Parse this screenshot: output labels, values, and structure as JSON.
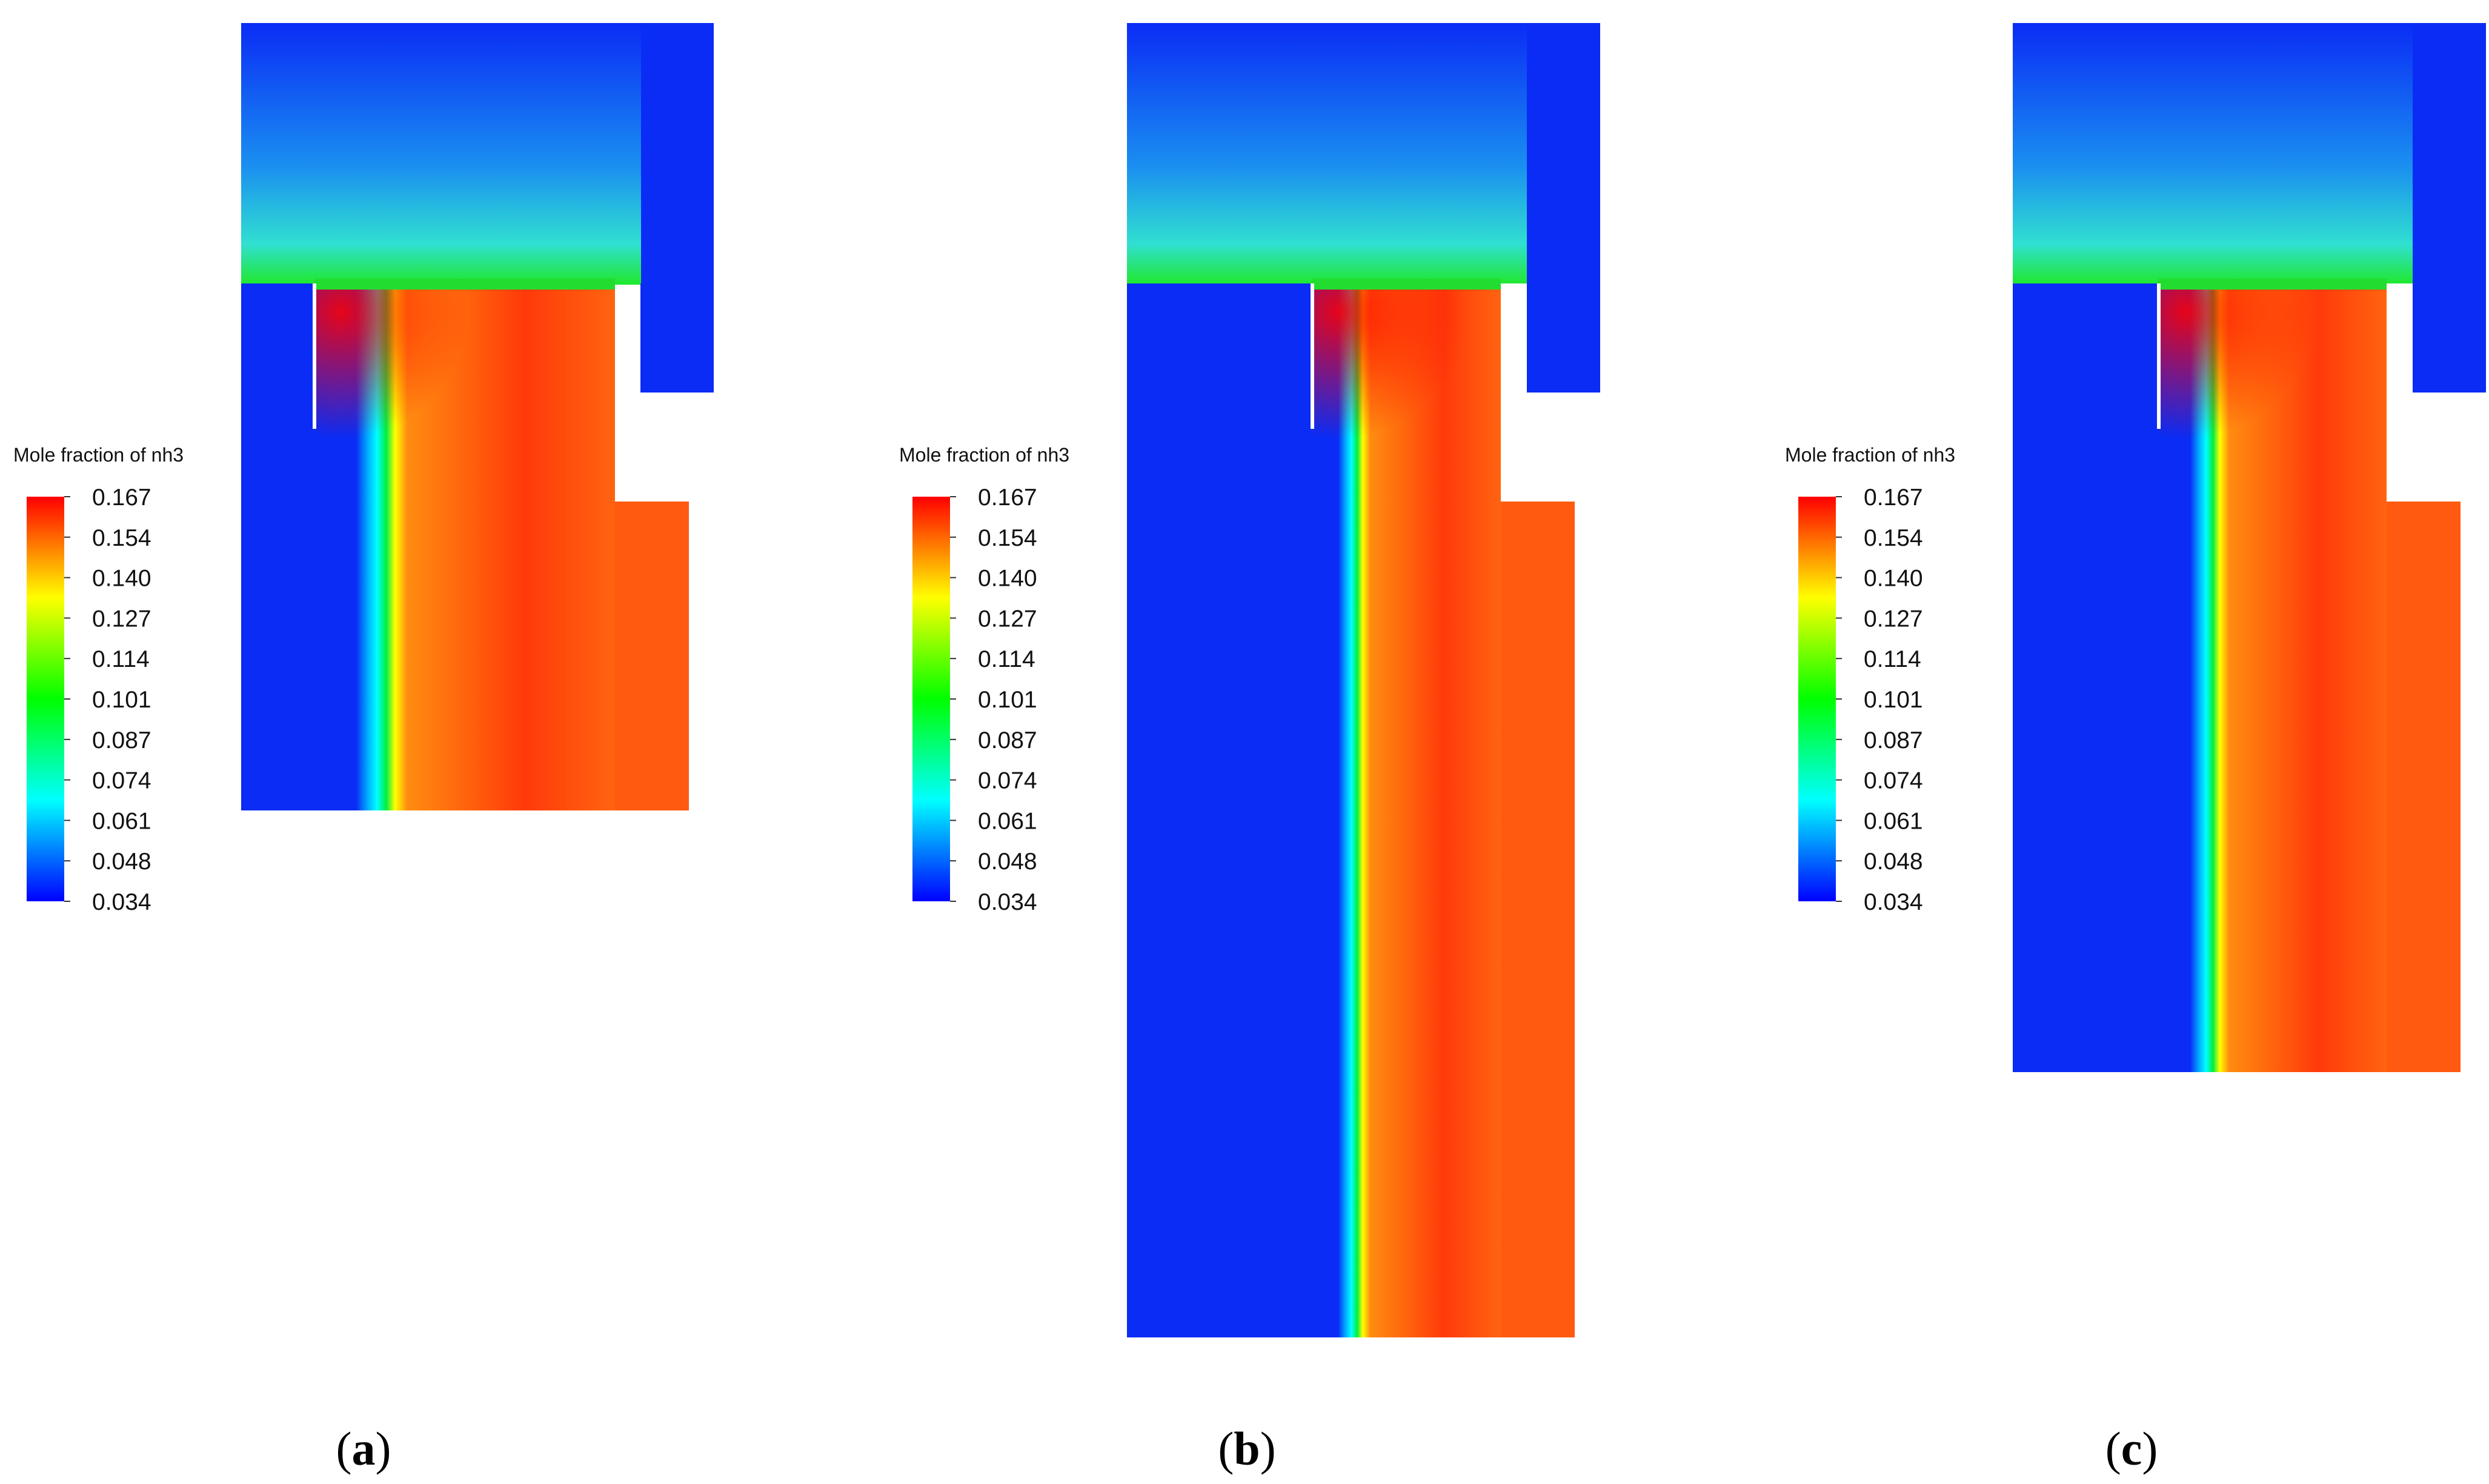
{
  "colorbar": {
    "title": "Mole fraction of nh3",
    "ticks": [
      "0.167",
      "0.154",
      "0.140",
      "0.127",
      "0.114",
      "0.101",
      "0.087",
      "0.074",
      "0.061",
      "0.048",
      "0.034"
    ],
    "range": [
      0.034,
      0.167
    ],
    "colormap": [
      "#0000ff",
      "#00ffff",
      "#00ff00",
      "#ffff00",
      "#ff0000"
    ]
  },
  "panels": [
    {
      "label": "a",
      "open_paren": "(",
      "close_paren": ")"
    },
    {
      "label": "b",
      "open_paren": "(",
      "close_paren": ")"
    },
    {
      "label": "c",
      "open_paren": "(",
      "close_paren": ")"
    }
  ]
}
